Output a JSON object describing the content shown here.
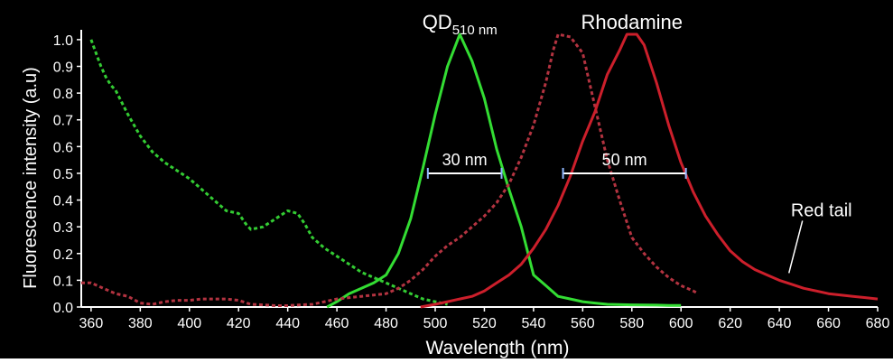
{
  "chart_data": {
    "type": "line",
    "title": "",
    "xlabel": "Wavelength (nm)",
    "ylabel": "Fluorescence intensity (a.u)",
    "xlim": [
      356,
      680
    ],
    "ylim": [
      0,
      1.03
    ],
    "grid": false,
    "legend": "none",
    "x_ticks": [
      360,
      380,
      400,
      420,
      440,
      460,
      480,
      500,
      520,
      540,
      560,
      580,
      600,
      620,
      640,
      660,
      680
    ],
    "y_ticks": [
      0.0,
      0.1,
      0.2,
      0.3,
      0.4,
      0.5,
      0.6,
      0.7,
      0.8,
      0.9,
      1.0
    ],
    "y_tick_labels": [
      "0.0",
      "0.1",
      "0.2",
      "0.3",
      "0.4",
      "0.5",
      "0.6",
      "0.7",
      "0.8",
      "0.9",
      "1.0"
    ],
    "background_color": "#000000",
    "axis_color": "#ffffff",
    "series": [
      {
        "color": "#33cc33",
        "dash": "dotted",
        "points": [
          [
            360,
            1.0
          ],
          [
            362,
            0.95
          ],
          [
            364,
            0.9
          ],
          [
            366,
            0.86
          ],
          [
            368,
            0.83
          ],
          [
            370,
            0.81
          ],
          [
            375,
            0.72
          ],
          [
            380,
            0.64
          ],
          [
            385,
            0.58
          ],
          [
            390,
            0.54
          ],
          [
            395,
            0.51
          ],
          [
            400,
            0.48
          ],
          [
            405,
            0.44
          ],
          [
            410,
            0.4
          ],
          [
            415,
            0.36
          ],
          [
            420,
            0.35
          ],
          [
            423,
            0.31
          ],
          [
            425,
            0.29
          ],
          [
            430,
            0.3
          ],
          [
            435,
            0.33
          ],
          [
            440,
            0.36
          ],
          [
            444,
            0.35
          ],
          [
            447,
            0.31
          ],
          [
            450,
            0.26
          ],
          [
            455,
            0.22
          ],
          [
            460,
            0.19
          ],
          [
            465,
            0.16
          ],
          [
            470,
            0.13
          ],
          [
            475,
            0.11
          ],
          [
            480,
            0.09
          ],
          [
            485,
            0.07
          ],
          [
            490,
            0.05
          ],
          [
            495,
            0.03
          ],
          [
            500,
            0.02
          ],
          [
            505,
            0.01
          ]
        ]
      },
      {
        "color": "#33dd33",
        "dash": "solid",
        "points": [
          [
            456,
            0.0
          ],
          [
            460,
            0.02
          ],
          [
            465,
            0.05
          ],
          [
            470,
            0.07
          ],
          [
            475,
            0.09
          ],
          [
            480,
            0.12
          ],
          [
            485,
            0.2
          ],
          [
            490,
            0.33
          ],
          [
            495,
            0.52
          ],
          [
            500,
            0.72
          ],
          [
            505,
            0.9
          ],
          [
            510,
            1.02
          ],
          [
            515,
            0.92
          ],
          [
            520,
            0.78
          ],
          [
            525,
            0.59
          ],
          [
            530,
            0.44
          ],
          [
            535,
            0.3
          ],
          [
            540,
            0.12
          ],
          [
            545,
            0.08
          ],
          [
            550,
            0.04
          ],
          [
            555,
            0.03
          ],
          [
            560,
            0.02
          ],
          [
            565,
            0.015
          ],
          [
            570,
            0.01
          ],
          [
            580,
            0.008
          ],
          [
            590,
            0.007
          ],
          [
            595,
            0.006
          ],
          [
            600,
            0.006
          ]
        ]
      },
      {
        "color": "#b33340",
        "dash": "dotted",
        "points": [
          [
            356,
            0.09
          ],
          [
            360,
            0.09
          ],
          [
            365,
            0.07
          ],
          [
            370,
            0.05
          ],
          [
            375,
            0.04
          ],
          [
            380,
            0.015
          ],
          [
            385,
            0.01
          ],
          [
            390,
            0.02
          ],
          [
            395,
            0.025
          ],
          [
            400,
            0.025
          ],
          [
            405,
            0.03
          ],
          [
            410,
            0.03
          ],
          [
            415,
            0.03
          ],
          [
            420,
            0.025
          ],
          [
            425,
            0.01
          ],
          [
            430,
            0.008
          ],
          [
            435,
            0.005
          ],
          [
            440,
            0.005
          ],
          [
            445,
            0.008
          ],
          [
            450,
            0.01
          ],
          [
            455,
            0.02
          ],
          [
            460,
            0.03
          ],
          [
            465,
            0.035
          ],
          [
            470,
            0.04
          ],
          [
            475,
            0.045
          ],
          [
            480,
            0.05
          ],
          [
            485,
            0.07
          ],
          [
            490,
            0.1
          ],
          [
            495,
            0.14
          ],
          [
            500,
            0.19
          ],
          [
            505,
            0.23
          ],
          [
            510,
            0.26
          ],
          [
            515,
            0.3
          ],
          [
            520,
            0.34
          ],
          [
            525,
            0.39
          ],
          [
            530,
            0.46
          ],
          [
            535,
            0.56
          ],
          [
            540,
            0.68
          ],
          [
            545,
            0.84
          ],
          [
            548,
            0.96
          ],
          [
            550,
            1.02
          ],
          [
            555,
            1.01
          ],
          [
            560,
            0.95
          ],
          [
            565,
            0.75
          ],
          [
            570,
            0.55
          ],
          [
            575,
            0.4
          ],
          [
            580,
            0.26
          ],
          [
            585,
            0.2
          ],
          [
            590,
            0.15
          ],
          [
            595,
            0.11
          ],
          [
            600,
            0.08
          ],
          [
            605,
            0.06
          ],
          [
            607,
            0.05
          ]
        ]
      },
      {
        "color": "#cc1f2b",
        "dash": "solid",
        "points": [
          [
            494,
            0.0
          ],
          [
            500,
            0.01
          ],
          [
            505,
            0.02
          ],
          [
            510,
            0.03
          ],
          [
            515,
            0.04
          ],
          [
            520,
            0.06
          ],
          [
            525,
            0.09
          ],
          [
            530,
            0.12
          ],
          [
            535,
            0.16
          ],
          [
            540,
            0.22
          ],
          [
            545,
            0.29
          ],
          [
            550,
            0.38
          ],
          [
            555,
            0.49
          ],
          [
            560,
            0.62
          ],
          [
            565,
            0.73
          ],
          [
            570,
            0.87
          ],
          [
            575,
            0.96
          ],
          [
            578,
            1.02
          ],
          [
            582,
            1.02
          ],
          [
            585,
            0.98
          ],
          [
            590,
            0.84
          ],
          [
            595,
            0.68
          ],
          [
            600,
            0.54
          ],
          [
            605,
            0.43
          ],
          [
            610,
            0.34
          ],
          [
            615,
            0.27
          ],
          [
            620,
            0.21
          ],
          [
            625,
            0.17
          ],
          [
            630,
            0.14
          ],
          [
            635,
            0.12
          ],
          [
            640,
            0.1
          ],
          [
            645,
            0.085
          ],
          [
            650,
            0.07
          ],
          [
            655,
            0.06
          ],
          [
            660,
            0.05
          ],
          [
            665,
            0.045
          ],
          [
            670,
            0.04
          ],
          [
            675,
            0.035
          ],
          [
            680,
            0.03
          ]
        ]
      }
    ],
    "annotations": [
      {
        "kind": "label",
        "text": "QD",
        "subscript": "510 nm",
        "x": 510,
        "y": 1.04
      },
      {
        "kind": "label",
        "text": "Rhodamine",
        "x": 580,
        "y": 1.04
      },
      {
        "kind": "span",
        "text": "30 nm",
        "x_start": 497,
        "x_end": 527,
        "y": 0.5
      },
      {
        "kind": "span",
        "text": "50 nm",
        "x_start": 552,
        "x_end": 602,
        "y": 0.5
      },
      {
        "kind": "callout",
        "text": "Red tail",
        "x": 645,
        "y": 0.12
      }
    ]
  }
}
